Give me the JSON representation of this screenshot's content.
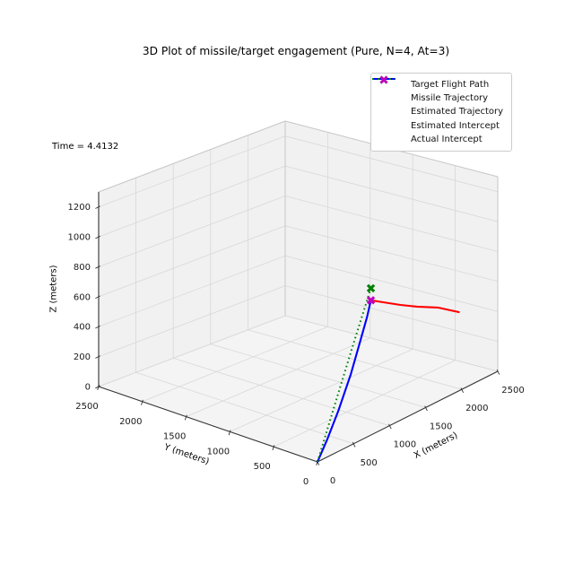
{
  "chart_data": {
    "type": "line",
    "projection": "3d",
    "title": "3D Plot of missile/target engagement (Pure, N=4, At=3)",
    "annotation": "Time = 4.4132",
    "background": "#ffffff",
    "grid": true,
    "pane_color": "#f1f1f2",
    "floor_color": "#f4f4f5",
    "grid_color": "#d8d8d8",
    "edge_color": "#c6c6c6",
    "spine_color": "#333333",
    "axes": {
      "x": {
        "label": "X (meters)",
        "ticks": [
          0,
          500,
          1000,
          1500,
          2000,
          2500
        ],
        "range": [
          0,
          2500
        ]
      },
      "y": {
        "label": "Y (meters)",
        "ticks": [
          0,
          500,
          1000,
          1500,
          2000,
          2500
        ],
        "range": [
          0,
          2500
        ]
      },
      "z": {
        "label": "Z (meters)",
        "ticks": [
          0,
          200,
          400,
          600,
          800,
          1000,
          1200
        ],
        "range": [
          0,
          1300
        ]
      }
    },
    "legend": {
      "position": "upper right",
      "entries": [
        {
          "label": "Target Flight Path",
          "color": "#ff0000",
          "sample": "line"
        },
        {
          "label": "Missile Trajectory",
          "color": "#0000ff",
          "sample": "line"
        },
        {
          "label": "Estimated Trajectory",
          "color": "#008000",
          "sample": "dotted"
        },
        {
          "label": "Estimated Intercept",
          "color": "#008000",
          "sample": "marker"
        },
        {
          "label": "Actual Intercept",
          "color": "#bf00bf",
          "sample": "marker"
        }
      ]
    },
    "series": [
      {
        "name": "Target Flight Path",
        "color": "#ff0000",
        "style": "solid",
        "points": [
          [
            2150,
            160,
            455
          ],
          [
            1900,
            195,
            540
          ],
          [
            1650,
            225,
            600
          ],
          [
            1450,
            250,
            655
          ],
          [
            1250,
            275,
            715
          ],
          [
            1100,
            300,
            760
          ]
        ]
      },
      {
        "name": "Missile Trajectory",
        "color": "#0000ff",
        "style": "solid",
        "points": [
          [
            0,
            0,
            0
          ],
          [
            180,
            40,
            95
          ],
          [
            400,
            90,
            230
          ],
          [
            650,
            155,
            400
          ],
          [
            850,
            215,
            560
          ],
          [
            1000,
            260,
            680
          ],
          [
            1100,
            300,
            760
          ]
        ]
      },
      {
        "name": "Estimated Trajectory",
        "color": "#008000",
        "style": "dotted",
        "points": [
          [
            0,
            0,
            0
          ],
          [
            365,
            100,
            280
          ],
          [
            730,
            200,
            560
          ],
          [
            1100,
            300,
            840
          ]
        ]
      }
    ],
    "markers": [
      {
        "name": "Estimated Intercept",
        "color": "#008000",
        "point": [
          1100,
          300,
          840
        ]
      },
      {
        "name": "Actual Intercept",
        "color": "#bf00bf",
        "point": [
          1100,
          300,
          760
        ]
      }
    ]
  }
}
